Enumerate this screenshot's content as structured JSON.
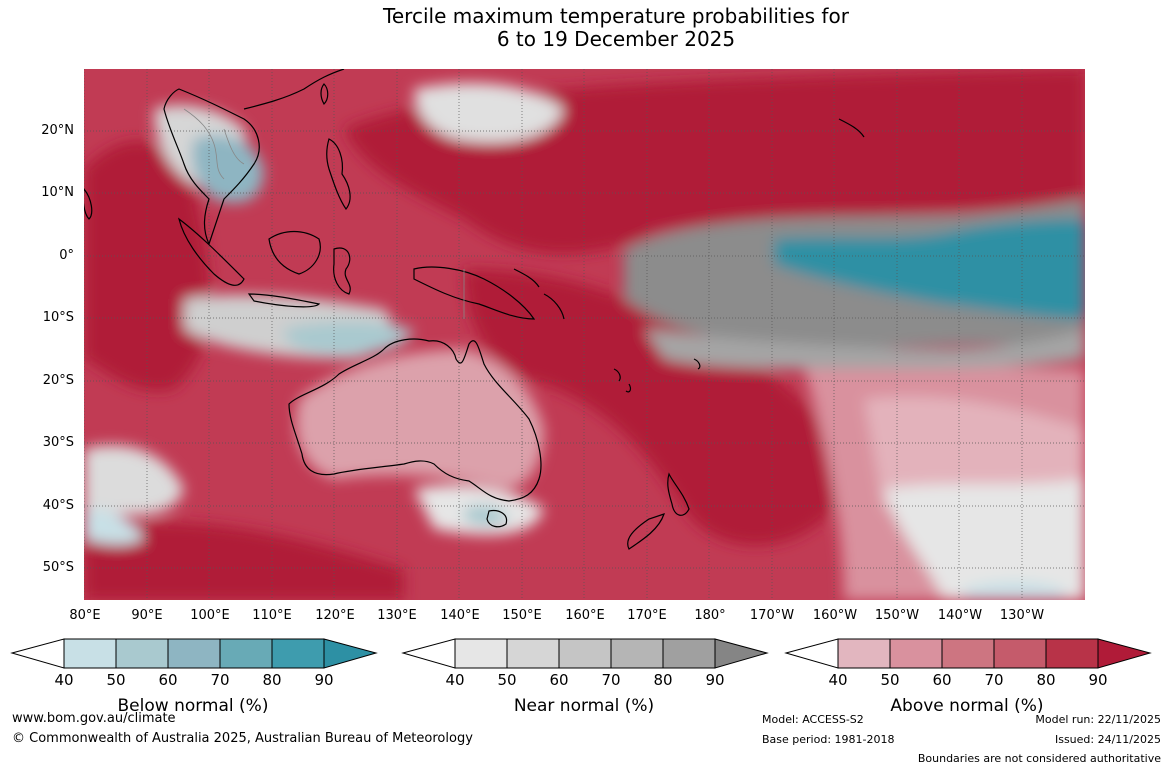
{
  "title": {
    "line1": "Tercile maximum temperature probabilities for",
    "line2": "6 to 19 December 2025"
  },
  "latitude_labels": [
    "20°N",
    "10°N",
    "0°",
    "10°S",
    "20°S",
    "30°S",
    "40°S",
    "50°S"
  ],
  "longitude_labels": [
    "80°E",
    "90°E",
    "100°E",
    "110°E",
    "120°E",
    "130°E",
    "140°E",
    "150°E",
    "160°E",
    "170°E",
    "180°",
    "170°W",
    "160°W",
    "150°W",
    "140°W",
    "130°W"
  ],
  "legends": [
    {
      "label": "Below normal (%)",
      "ticks": [
        "40",
        "50",
        "60",
        "70",
        "80",
        "90"
      ],
      "colors": [
        "#ffffff",
        "#c8e0e6",
        "#a9c9cf",
        "#8eb5c2",
        "#68aab6",
        "#3e9cae",
        "#2d90a4"
      ]
    },
    {
      "label": "Near normal (%)",
      "ticks": [
        "40",
        "50",
        "60",
        "70",
        "80",
        "90"
      ],
      "colors": [
        "#ffffff",
        "#e6e6e6",
        "#d6d6d6",
        "#c5c5c5",
        "#b5b5b5",
        "#a0a0a0",
        "#858585"
      ]
    },
    {
      "label": "Above normal (%)",
      "ticks": [
        "40",
        "50",
        "60",
        "70",
        "80",
        "90"
      ],
      "colors": [
        "#ffffff",
        "#e2b6bf",
        "#d9919e",
        "#cd7581",
        "#c55b6b",
        "#b83348",
        "#b01b38"
      ]
    }
  ],
  "footer": {
    "website": "www.bom.gov.au/climate",
    "copyright": "© Commonwealth of Australia 2025, Australian Bureau of Meteorology",
    "model": "Model: ACCESS-S2",
    "base_period": "Base period: 1981-2018",
    "model_run": "Model run: 22/11/2025",
    "issued": "Issued: 24/11/2025",
    "disclaimer": "Boundaries are not considered authoritative"
  }
}
